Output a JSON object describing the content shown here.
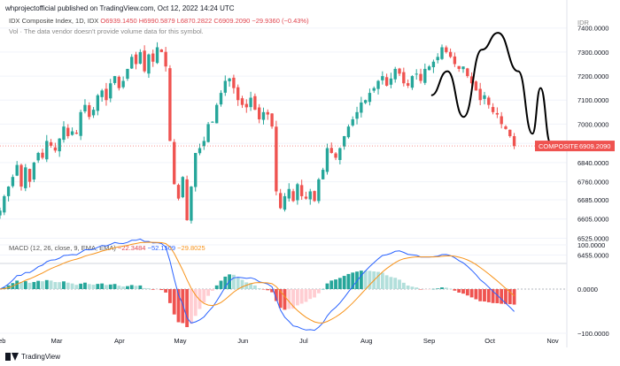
{
  "header": {
    "text": "whprojectofficial published on TradingView.com, Oct 12, 2022 14:24 UTC"
  },
  "title": {
    "symbol": "IDX Composite Index, 1D, IDX",
    "ohlc": "O6939.1450  H6990.5879  L6870.2822  C6909.2090  −29.9360 (−0.43%)"
  },
  "volume_note": "Vol · The data vendor doesn't provide volume data for this symbol.",
  "currency_label": "IDR",
  "price_badge": {
    "label": "COMPOSITE",
    "value": "6909.2090"
  },
  "macd_legend": {
    "name": "MACD (12, 26, close, 9, EMA, EMA)",
    "histogram": "−22.3484",
    "macd": "−52.1509",
    "signal": "−29.8025"
  },
  "footer": {
    "brand": "TradingView"
  },
  "colors": {
    "up": "#26a69a",
    "down": "#ef5350",
    "pattern": "#000000",
    "macd_line": "#2962ff",
    "signal_line": "#f7931a",
    "badge": "#ef5350"
  },
  "chart_data": [
    {
      "type": "candlestick",
      "title": "IDX Composite Index, 1D, IDX",
      "ylim": [
        6420,
        7480
      ],
      "y_ticks": [
        6455,
        6525,
        6605,
        6685,
        6760,
        6840,
        6920,
        7000,
        7100,
        7200,
        7300,
        7400
      ],
      "y_tick_labels": [
        "6455.0000",
        "6525.0000",
        "6605.0000",
        "6685.0000",
        "6760.0000",
        "6840.0000",
        "6920.0000",
        "7000.0000",
        "7100.0000",
        "7200.0000",
        "7300.0000",
        "7400.0000"
      ],
      "x_tick_labels": [
        "Feb",
        "Mar",
        "Apr",
        "May",
        "Jun",
        "Jul",
        "Aug",
        "Sep",
        "Oct",
        "Nov"
      ],
      "x_tick_days": [
        0,
        28,
        59,
        89,
        120,
        150,
        181,
        212,
        242,
        273
      ],
      "last_day": 254,
      "current_value": 6909.209,
      "closes": [
        6640,
        6700,
        6740,
        6780,
        6830,
        6740,
        6820,
        6760,
        6840,
        6880,
        6860,
        6930,
        6910,
        6890,
        6940,
        6990,
        6950,
        6970,
        6960,
        7050,
        7080,
        7030,
        7060,
        7120,
        7140,
        7100,
        7170,
        7200,
        7150,
        7180,
        7230,
        7280,
        7250,
        7300,
        7220,
        7290,
        7260,
        7320,
        7300,
        7240,
        6930,
        6750,
        6690,
        6780,
        6600,
        6740,
        6880,
        6900,
        6930,
        7000,
        7010,
        7080,
        7130,
        7180,
        7190,
        7150,
        7100,
        7080,
        7070,
        7110,
        7060,
        7020,
        7050,
        7040,
        6990,
        6720,
        6650,
        6700,
        6730,
        6680,
        6750,
        6700,
        6690,
        6720,
        6680,
        6770,
        6810,
        6900,
        6880,
        6860,
        6900,
        6950,
        6990,
        7020,
        7050,
        7090,
        7100,
        7130,
        7150,
        7180,
        7200,
        7160,
        7190,
        7230,
        7210,
        7170,
        7160,
        7200,
        7210,
        7180,
        7230,
        7240,
        7260,
        7280,
        7320,
        7300,
        7280,
        7250,
        7230,
        7240,
        7200,
        7170,
        7140,
        7100,
        7120,
        7080,
        7050,
        7040,
        7000,
        6980,
        6950,
        6909
      ],
      "pattern_line": [
        {
          "day": 213,
          "value": 7120
        },
        {
          "day": 221,
          "value": 7220
        },
        {
          "day": 229,
          "value": 7030
        },
        {
          "day": 238,
          "value": 7310
        },
        {
          "day": 246,
          "value": 7380
        },
        {
          "day": 256,
          "value": 7220
        },
        {
          "day": 263,
          "value": 6960
        },
        {
          "day": 267,
          "value": 7150
        },
        {
          "day": 272,
          "value": 6920
        }
      ]
    },
    {
      "type": "macd",
      "title": "MACD (12, 26, close, 9, EMA, EMA)",
      "ylim": [
        -110,
        110
      ],
      "y_ticks": [
        100,
        0,
        -100
      ],
      "y_tick_labels": [
        "100.0000",
        "0.0000",
        "−100.0000"
      ],
      "values_note": "series derived from daily closes (12/26/9 EMA)"
    }
  ]
}
